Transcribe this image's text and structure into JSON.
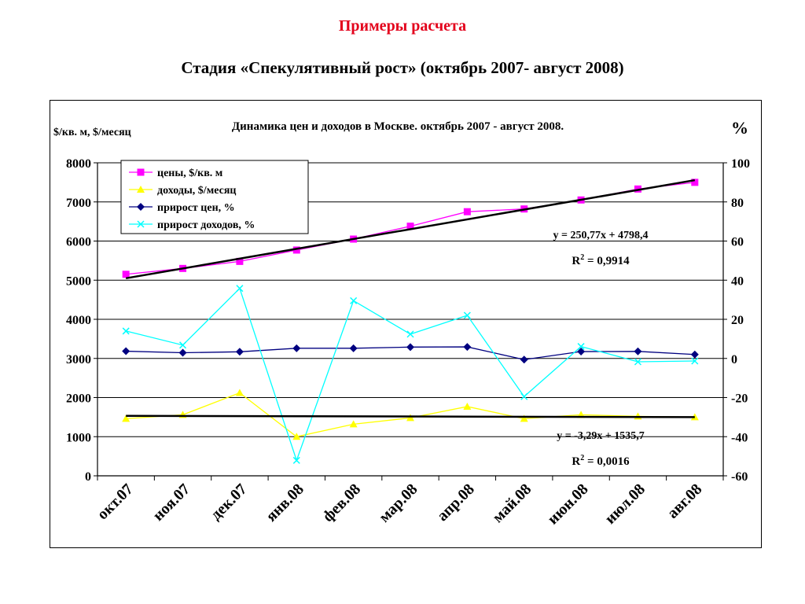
{
  "page": {
    "heading": "Примеры расчета",
    "subheading": "Стадия «Спекулятивный рост» (октябрь 2007- август 2008)"
  },
  "chart_data": {
    "type": "line",
    "title": "Динамика цен и доходов в Москве. октябрь 2007 - август 2008.",
    "left_axis_label": "$/кв. м, $/месяц",
    "right_axis_label": "%",
    "categories": [
      "окт.07",
      "ноя.07",
      "дек.07",
      "янв.08",
      "фев.08",
      "мар.08",
      "апр.08",
      "май.08",
      "июн.08",
      "июл.08",
      "авг.08"
    ],
    "left_axis": {
      "min": 0,
      "max": 8000,
      "step": 1000,
      "tick_labels": [
        "0",
        "1000",
        "2000",
        "3000",
        "4000",
        "5000",
        "6000",
        "7000",
        "8000"
      ]
    },
    "right_axis": {
      "min": -60,
      "max": 100,
      "step": 20,
      "tick_labels": [
        "-60",
        "-40",
        "-20",
        "0",
        "20",
        "40",
        "60",
        "80",
        "100"
      ]
    },
    "grid": "horizontal",
    "legend_position": "top-left",
    "series": [
      {
        "name": "цены, $/кв. м",
        "axis": "left",
        "color": "#ff00ff",
        "marker": "square",
        "values": [
          5150,
          5300,
          5480,
          5770,
          6050,
          6380,
          6750,
          6820,
          7050,
          7330,
          7500
        ]
      },
      {
        "name": "доходы, $/месяц",
        "axis": "left",
        "color": "#ffff00",
        "marker": "triangle",
        "values": [
          1460,
          1560,
          2120,
          1000,
          1320,
          1480,
          1770,
          1460,
          1560,
          1520,
          1500
        ]
      },
      {
        "name": "прирост цен, %",
        "axis": "right",
        "color": "#000080",
        "marker": "diamond",
        "values": [
          3.7,
          2.9,
          3.4,
          5.2,
          5.2,
          5.8,
          5.9,
          -0.6,
          3.5,
          3.6,
          2.0
        ]
      },
      {
        "name": "прирост доходов, %",
        "axis": "right",
        "color": "#00ffff",
        "marker": "x",
        "values": [
          14.0,
          6.8,
          35.8,
          -52.1,
          29.5,
          12.4,
          22.0,
          -19.5,
          6.1,
          -1.7,
          -1.3
        ]
      }
    ],
    "trendlines": [
      {
        "series": "цены, $/кв. м",
        "slope": 250.77,
        "intercept": 4798.4,
        "equation": "y = 250,77x + 4798,4",
        "r2_prefix": "R",
        "r2_exp": "2",
        "r2_value": " = 0,9914"
      },
      {
        "series": "доходы, $/месяц",
        "slope": -3.29,
        "intercept": 1535.7,
        "equation": "y = -3,29x + 1535,7",
        "r2_prefix": "R",
        "r2_exp": "2",
        "r2_value": " = 0,0016"
      }
    ]
  }
}
